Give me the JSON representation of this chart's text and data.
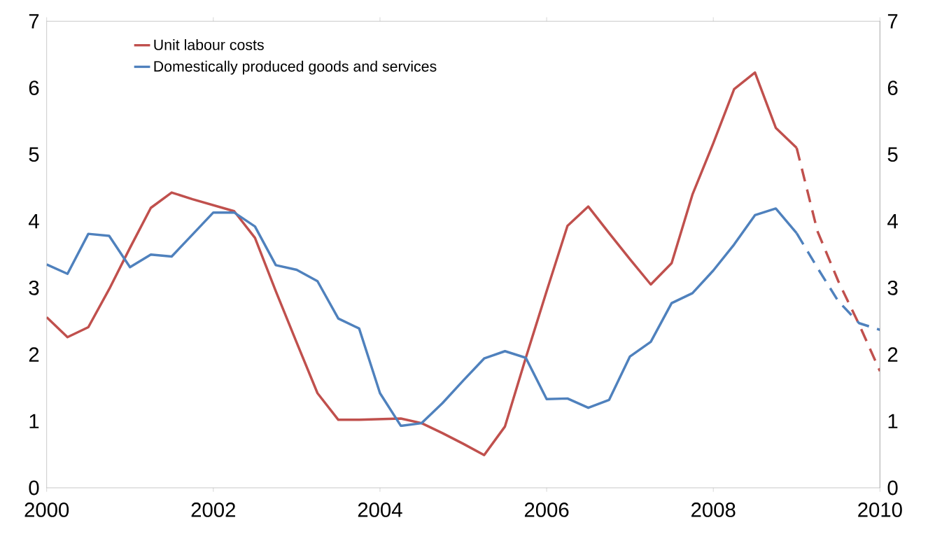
{
  "chart_data": {
    "type": "line",
    "xlim": [
      2000,
      2010
    ],
    "xticks": [
      2000,
      2002,
      2004,
      2006,
      2008,
      2010
    ],
    "ylim": [
      0,
      7
    ],
    "yticks": [
      0,
      1,
      2,
      3,
      4,
      5,
      6,
      7
    ],
    "y2lim": [
      0,
      7
    ],
    "y2ticks": [
      0,
      1,
      2,
      3,
      4,
      5,
      6,
      7
    ],
    "legend": "top left",
    "marker": "none",
    "grid": false,
    "series": [
      {
        "name": "Unit labour costs",
        "color": "#c0504d",
        "line_style": "solid",
        "x": [
          2000,
          2000.25,
          2000.5,
          2000.75,
          2001,
          2001.25,
          2001.5,
          2001.75,
          2002,
          2002.25,
          2002.5,
          2002.75,
          2003,
          2003.25,
          2003.5,
          2003.75,
          2004,
          2004.25,
          2004.5,
          2004.75,
          2005,
          2005.25,
          2005.5,
          2005.75,
          2006,
          2006.25,
          2006.5,
          2006.75,
          2007,
          2007.25,
          2007.5,
          2007.75,
          2008,
          2008.25,
          2008.5,
          2008.75,
          2009
        ],
        "values": [
          2.56,
          2.26,
          2.41,
          2.98,
          3.6,
          4.2,
          4.43,
          4.33,
          4.24,
          4.15,
          3.75,
          2.95,
          2.18,
          1.42,
          1.02,
          1.02,
          1.03,
          1.04,
          0.97,
          0.82,
          0.66,
          0.49,
          0.92,
          1.95,
          2.95,
          3.93,
          4.22,
          3.82,
          3.43,
          3.05,
          3.37,
          4.4,
          5.17,
          5.98,
          6.23,
          5.4,
          5.1
        ]
      },
      {
        "name": "Domestically produced goods and services",
        "color": "#4f81bd",
        "line_style": "solid",
        "x": [
          2000,
          2000.25,
          2000.5,
          2000.75,
          2001,
          2001.25,
          2001.5,
          2001.75,
          2002,
          2002.25,
          2002.5,
          2002.75,
          2003,
          2003.25,
          2003.5,
          2003.75,
          2004,
          2004.25,
          2004.5,
          2004.75,
          2005,
          2005.25,
          2005.5,
          2005.75,
          2006,
          2006.25,
          2006.5,
          2006.75,
          2007,
          2007.25,
          2007.5,
          2007.75,
          2008,
          2008.25,
          2008.5,
          2008.75,
          2009
        ],
        "values": [
          3.35,
          3.21,
          3.81,
          3.78,
          3.31,
          3.5,
          3.47,
          3.8,
          4.13,
          4.13,
          3.92,
          3.34,
          3.27,
          3.1,
          2.54,
          2.39,
          1.42,
          0.93,
          0.97,
          1.27,
          1.61,
          1.94,
          2.05,
          1.95,
          1.33,
          1.34,
          1.2,
          1.32,
          1.97,
          2.19,
          2.77,
          2.92,
          3.26,
          3.65,
          4.09,
          4.19,
          3.82
        ]
      },
      {
        "color": "#c0504d",
        "line_style": "dashed",
        "x": [
          2009,
          2009.25,
          2009.5,
          2009.75,
          2010
        ],
        "values": [
          5.1,
          3.85,
          3.1,
          2.45,
          1.75
        ]
      },
      {
        "color": "#4f81bd",
        "line_style": "dashed",
        "x": [
          2009,
          2009.25,
          2009.5,
          2009.75,
          2010
        ],
        "values": [
          3.82,
          3.3,
          2.8,
          2.47,
          2.37
        ]
      }
    ]
  }
}
